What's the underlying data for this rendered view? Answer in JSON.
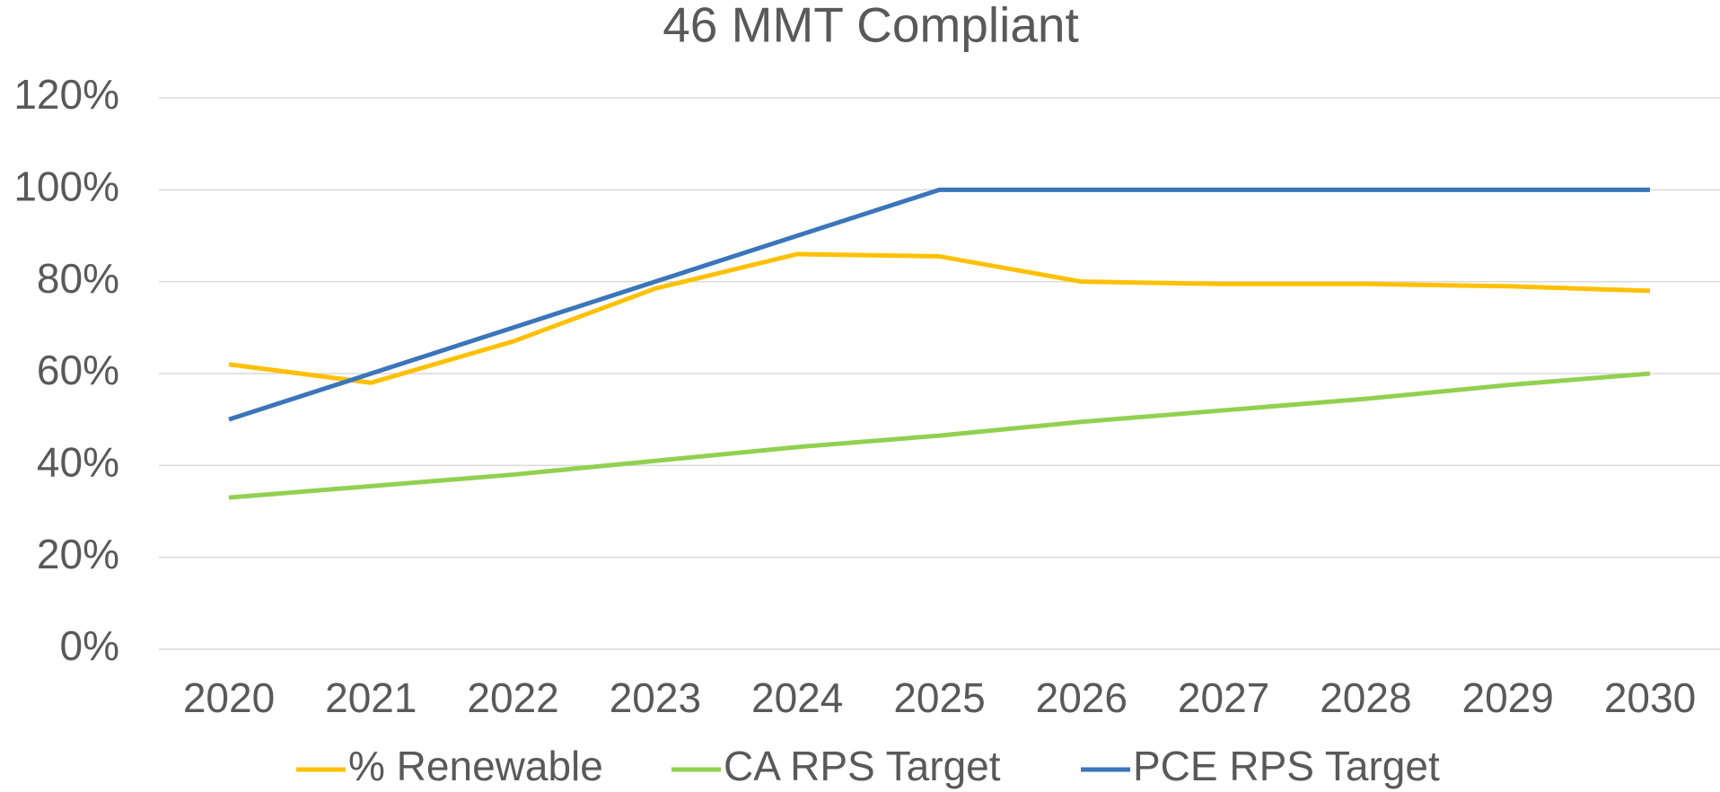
{
  "chart_data": {
    "type": "line",
    "title": "46 MMT Compliant",
    "categories": [
      "2020",
      "2021",
      "2022",
      "2023",
      "2024",
      "2025",
      "2026",
      "2027",
      "2028",
      "2029",
      "2030"
    ],
    "series": [
      {
        "name": "% Renewable",
        "color": "#ffc000",
        "values": [
          62,
          58,
          67,
          78.5,
          86,
          85.5,
          80,
          79.5,
          79.5,
          79,
          78
        ]
      },
      {
        "name": "CA RPS Target",
        "color": "#92d050",
        "values": [
          33,
          35.5,
          38,
          41,
          44,
          46.5,
          49.5,
          52,
          54.5,
          57.5,
          60
        ]
      },
      {
        "name": "PCE RPS Target",
        "color": "#3b75ba",
        "values": [
          50,
          60,
          70,
          80,
          90,
          100,
          100,
          100,
          100,
          100,
          100
        ]
      }
    ],
    "ylim": [
      0,
      120
    ],
    "yticks": [
      {
        "value": 0,
        "label": "0%"
      },
      {
        "value": 20,
        "label": "20%"
      },
      {
        "value": 40,
        "label": "40%"
      },
      {
        "value": 60,
        "label": "60%"
      },
      {
        "value": 80,
        "label": "80%"
      },
      {
        "value": 100,
        "label": "100%"
      },
      {
        "value": 120,
        "label": "120%"
      }
    ],
    "grid": true,
    "legend": "bottom"
  }
}
